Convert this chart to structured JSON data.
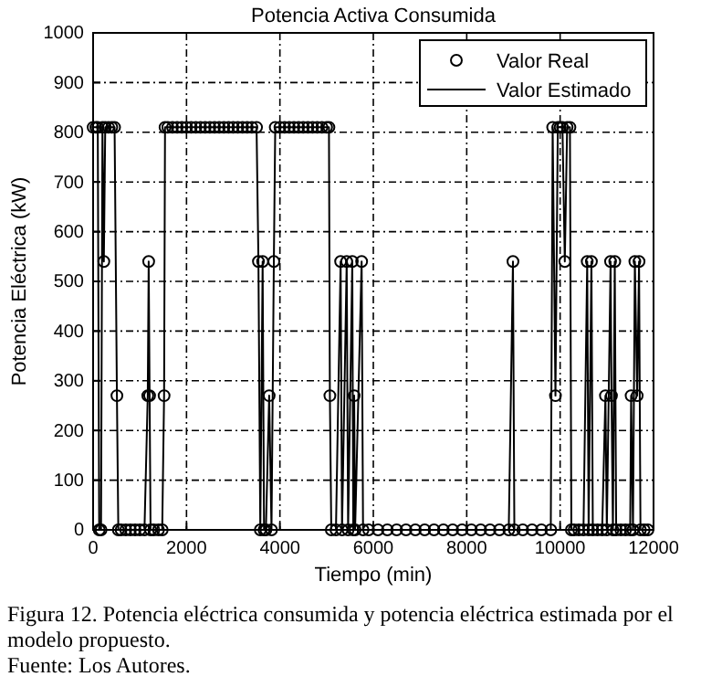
{
  "chart_data": {
    "type": "line",
    "title": "Potencia Activa Consumida",
    "xlabel": "Tiempo (min)",
    "ylabel": "Potencia Eléctrica (kW)",
    "annotations": [
      "Figura 12. Potencia eléctrica consumida y potencia eléctrica estimada por el modelo propuesto.",
      "Fuente: Los Autores."
    ],
    "xlim": [
      0,
      12000
    ],
    "xticks": [
      0,
      2000,
      4000,
      6000,
      8000,
      10000,
      12000
    ],
    "ylim": [
      0,
      1000
    ],
    "yticks": [
      0,
      100,
      200,
      300,
      400,
      500,
      600,
      700,
      800,
      900,
      1000
    ],
    "grid": true,
    "legend": "top right",
    "x": [
      0,
      60,
      100,
      130,
      170,
      200,
      230,
      260,
      330,
      400,
      460,
      510,
      540,
      600,
      700,
      800,
      900,
      1000,
      1100,
      1170,
      1190,
      1210,
      1230,
      1300,
      1400,
      1480,
      1520,
      1540,
      1600,
      1700,
      1800,
      1900,
      2000,
      2100,
      2200,
      2300,
      2400,
      2500,
      2600,
      2700,
      2800,
      2900,
      3000,
      3100,
      3200,
      3300,
      3400,
      3500,
      3540,
      3580,
      3630,
      3660,
      3700,
      3770,
      3820,
      3870,
      3900,
      4000,
      4100,
      4200,
      4300,
      4400,
      4500,
      4600,
      4700,
      4800,
      4900,
      5000,
      5050,
      5070,
      5100,
      5200,
      5300,
      5330,
      5430,
      5460,
      5550,
      5570,
      5590,
      5610,
      5750,
      5780,
      5900,
      6100,
      6300,
      6500,
      6700,
      6900,
      7100,
      7300,
      7500,
      7700,
      7900,
      8100,
      8300,
      8500,
      8700,
      8900,
      8990,
      9020,
      9200,
      9400,
      9600,
      9800,
      9840,
      9900,
      9950,
      10000,
      10050,
      10100,
      10150,
      10210,
      10240,
      10300,
      10400,
      10500,
      10580,
      10610,
      10670,
      10700,
      10800,
      10900,
      10970,
      11000,
      11080,
      11100,
      11130,
      11170,
      11200,
      11300,
      11400,
      11500,
      11520,
      11560,
      11600,
      11650,
      11690,
      11720,
      11800,
      11880
    ],
    "series": [
      {
        "name": "Valor Real",
        "type": "scatter",
        "marker": "circle",
        "color": "#000000",
        "values": [
          810,
          810,
          810,
          0,
          0,
          810,
          540,
          810,
          810,
          810,
          810,
          270,
          0,
          0,
          0,
          0,
          0,
          0,
          0,
          270,
          540,
          270,
          0,
          0,
          0,
          0,
          270,
          810,
          810,
          810,
          810,
          810,
          810,
          810,
          810,
          810,
          810,
          810,
          810,
          810,
          810,
          810,
          810,
          810,
          810,
          810,
          810,
          810,
          540,
          0,
          540,
          0,
          0,
          270,
          0,
          540,
          810,
          810,
          810,
          810,
          810,
          810,
          810,
          810,
          810,
          810,
          810,
          810,
          810,
          270,
          0,
          0,
          540,
          0,
          540,
          0,
          540,
          0,
          270,
          0,
          540,
          0,
          0,
          0,
          0,
          0,
          0,
          0,
          0,
          0,
          0,
          0,
          0,
          0,
          0,
          0,
          0,
          0,
          540,
          0,
          0,
          0,
          0,
          0,
          810,
          270,
          810,
          810,
          810,
          540,
          810,
          810,
          0,
          0,
          0,
          0,
          540,
          0,
          540,
          0,
          0,
          0,
          270,
          0,
          540,
          270,
          0,
          540,
          0,
          0,
          0,
          0,
          270,
          0,
          540,
          270,
          540,
          0,
          0,
          0
        ]
      },
      {
        "name": "Valor Estimado",
        "marker": "none",
        "color": "#000000",
        "values": [
          810,
          810,
          810,
          0,
          0,
          810,
          540,
          810,
          810,
          810,
          810,
          270,
          0,
          0,
          0,
          0,
          0,
          0,
          0,
          270,
          540,
          270,
          0,
          0,
          0,
          0,
          270,
          810,
          810,
          810,
          810,
          810,
          810,
          810,
          810,
          810,
          810,
          810,
          810,
          810,
          810,
          810,
          810,
          810,
          810,
          810,
          810,
          810,
          540,
          0,
          540,
          0,
          0,
          270,
          0,
          540,
          810,
          810,
          810,
          810,
          810,
          810,
          810,
          810,
          810,
          810,
          810,
          810,
          810,
          270,
          0,
          0,
          540,
          0,
          540,
          0,
          540,
          0,
          270,
          0,
          540,
          0,
          0,
          0,
          0,
          0,
          0,
          0,
          0,
          0,
          0,
          0,
          0,
          0,
          0,
          0,
          0,
          0,
          540,
          0,
          0,
          0,
          0,
          0,
          810,
          270,
          810,
          810,
          810,
          540,
          810,
          810,
          0,
          0,
          0,
          0,
          540,
          0,
          540,
          0,
          0,
          0,
          270,
          0,
          540,
          270,
          0,
          540,
          0,
          0,
          0,
          0,
          270,
          0,
          540,
          270,
          540,
          0,
          0,
          0
        ]
      }
    ]
  }
}
